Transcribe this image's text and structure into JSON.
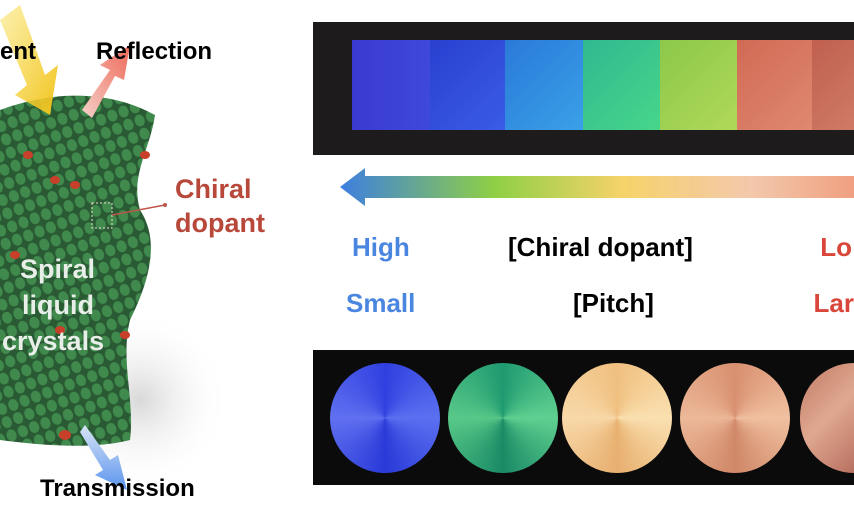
{
  "labels": {
    "incident": "ent",
    "reflection": "Reflection",
    "chiral_dopant_line1": "Chiral",
    "chiral_dopant_line2": "dopant",
    "spiral_line1": "Spiral",
    "spiral_line2": "liquid",
    "spiral_line3": "crystals",
    "transmission": "Transmission"
  },
  "scale": {
    "row1_left": "High",
    "row1_center": "[Chiral dopant]",
    "row1_right": "Lo",
    "row2_left": "Small",
    "row2_center": "[Pitch]",
    "row2_right": "Lar"
  },
  "colors": {
    "blue_text": "#4a86e0",
    "red_text": "#d9463a",
    "dopant_text": "#b8483a",
    "gradient": [
      "#3d7fe0",
      "#8fcf45",
      "#f6d36a",
      "#f3c3a4",
      "#f0a080"
    ],
    "film_squares": [
      "#3a3fd0",
      "#2e4ad6",
      "#2f8fe0",
      "#36c98a",
      "#9fcf4a",
      "#d0705a",
      "#c66a55"
    ],
    "film_circles": [
      "#3550e0",
      "#2fb27a",
      "#f0c488",
      "#e0a07a",
      "#c98870"
    ]
  }
}
